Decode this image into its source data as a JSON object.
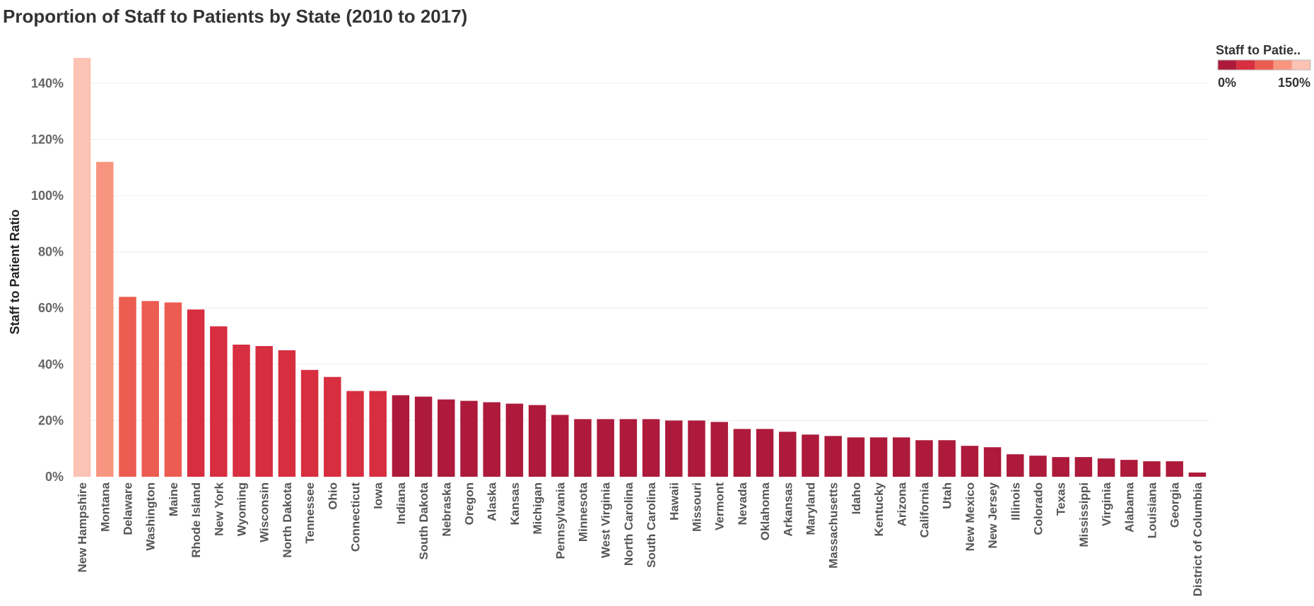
{
  "title": "Proportion of Staff to Patients by State (2010 to 2017)",
  "chart_data": {
    "type": "bar",
    "title": "Proportion of Staff to Patients by State (2010 to 2017)",
    "xlabel": "",
    "ylabel": "Staff to Patient Ratio",
    "y_unit": "%",
    "ylim": [
      0,
      150
    ],
    "yticks": [
      0,
      20,
      40,
      60,
      80,
      100,
      120,
      140
    ],
    "ytick_labels": [
      "0%",
      "20%",
      "40%",
      "60%",
      "80%",
      "100%",
      "120%",
      "140%"
    ],
    "grid": true,
    "categories": [
      "New Hampshire",
      "Montana",
      "Delaware",
      "Washington",
      "Maine",
      "Rhode Island",
      "New York",
      "Wyoming",
      "Wisconsin",
      "North Dakota",
      "Tennessee",
      "Ohio",
      "Connecticut",
      "Iowa",
      "Indiana",
      "South Dakota",
      "Nebraska",
      "Oregon",
      "Alaska",
      "Kansas",
      "Michigan",
      "Pennsylvania",
      "Minnesota",
      "West Virginia",
      "North Carolina",
      "South Carolina",
      "Hawaii",
      "Missouri",
      "Vermont",
      "Nevada",
      "Oklahoma",
      "Arkansas",
      "Maryland",
      "Massachusetts",
      "Idaho",
      "Kentucky",
      "Arizona",
      "California",
      "Utah",
      "New Mexico",
      "New Jersey",
      "Illinois",
      "Colorado",
      "Texas",
      "Mississippi",
      "Virginia",
      "Alabama",
      "Louisiana",
      "Georgia",
      "District of Columbia"
    ],
    "values": [
      149,
      112,
      64,
      62.5,
      62,
      59.5,
      53.5,
      47,
      46.5,
      45,
      38,
      35.5,
      30.5,
      30.5,
      29,
      28.5,
      27.5,
      27,
      26.5,
      26,
      25.5,
      22,
      20.5,
      20.5,
      20.5,
      20.5,
      20,
      20,
      19.5,
      17,
      17,
      16,
      15,
      14.5,
      14,
      14,
      14,
      13,
      13,
      11,
      10.5,
      8,
      7.5,
      7,
      7,
      6.5,
      6,
      5.5,
      5.5,
      1.5
    ],
    "legend": {
      "title": "Staff to Patie..",
      "placement": "top-right",
      "min_label": "0%",
      "max_label": "150%",
      "range": [
        0,
        150
      ],
      "colors": [
        "#ad1a3b",
        "#d72e40",
        "#ec5c50",
        "#f89580",
        "#fcc2b4"
      ]
    }
  }
}
